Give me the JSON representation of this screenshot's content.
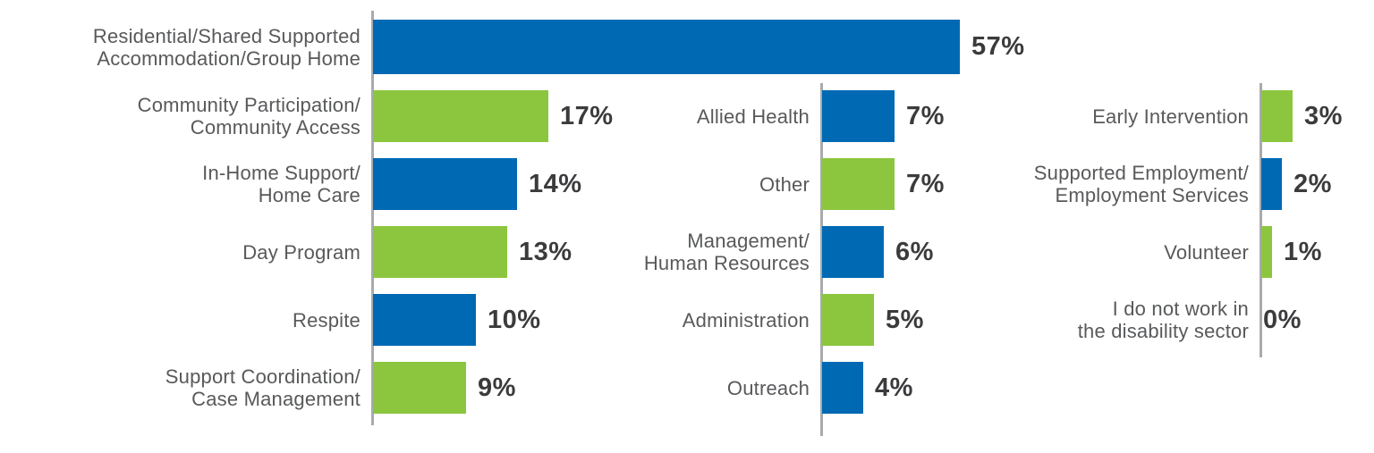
{
  "chart_data": {
    "type": "bar",
    "orientation": "horizontal",
    "unit": "%",
    "title": "",
    "axis_range": [
      0,
      57
    ],
    "grid": false,
    "legend": false,
    "bar_colors": {
      "blue": "#0069b4",
      "green": "#8cc63f"
    },
    "text_colors": {
      "category": "#58595b",
      "value": "#3b3b3d"
    },
    "groups": [
      {
        "name": "left",
        "rows": [
          {
            "label_lines": [
              "Residential/Shared Supported",
              "Accommodation/Group Home"
            ],
            "value": 57,
            "value_label": "57%",
            "color": "blue"
          },
          {
            "label_lines": [
              "Community Participation/",
              "Community Access"
            ],
            "value": 17,
            "value_label": "17%",
            "color": "green"
          },
          {
            "label_lines": [
              "In-Home Support/",
              "Home Care"
            ],
            "value": 14,
            "value_label": "14%",
            "color": "blue"
          },
          {
            "label_lines": [
              "Day Program"
            ],
            "value": 13,
            "value_label": "13%",
            "color": "green"
          },
          {
            "label_lines": [
              "Respite"
            ],
            "value": 10,
            "value_label": "10%",
            "color": "blue"
          },
          {
            "label_lines": [
              "Support Coordination/",
              "Case Management"
            ],
            "value": 9,
            "value_label": "9%",
            "color": "green"
          }
        ]
      },
      {
        "name": "middle",
        "rows": [
          {
            "label_lines": [
              "Allied Health"
            ],
            "value": 7,
            "value_label": "7%",
            "color": "blue"
          },
          {
            "label_lines": [
              "Other"
            ],
            "value": 7,
            "value_label": "7%",
            "color": "green"
          },
          {
            "label_lines": [
              "Management/",
              "Human Resources"
            ],
            "value": 6,
            "value_label": "6%",
            "color": "blue"
          },
          {
            "label_lines": [
              "Administration"
            ],
            "value": 5,
            "value_label": "5%",
            "color": "green"
          },
          {
            "label_lines": [
              "Outreach"
            ],
            "value": 4,
            "value_label": "4%",
            "color": "blue"
          }
        ]
      },
      {
        "name": "right",
        "rows": [
          {
            "label_lines": [
              "Early Intervention"
            ],
            "value": 3,
            "value_label": "3%",
            "color": "green"
          },
          {
            "label_lines": [
              "Supported Employment/",
              "Employment Services"
            ],
            "value": 2,
            "value_label": "2%",
            "color": "blue"
          },
          {
            "label_lines": [
              "Volunteer"
            ],
            "value": 1,
            "value_label": "1%",
            "color": "green"
          },
          {
            "label_lines": [
              "I do not work in",
              "the disability sector"
            ],
            "value": 0,
            "value_label": "0%",
            "color": "none"
          }
        ]
      }
    ]
  }
}
